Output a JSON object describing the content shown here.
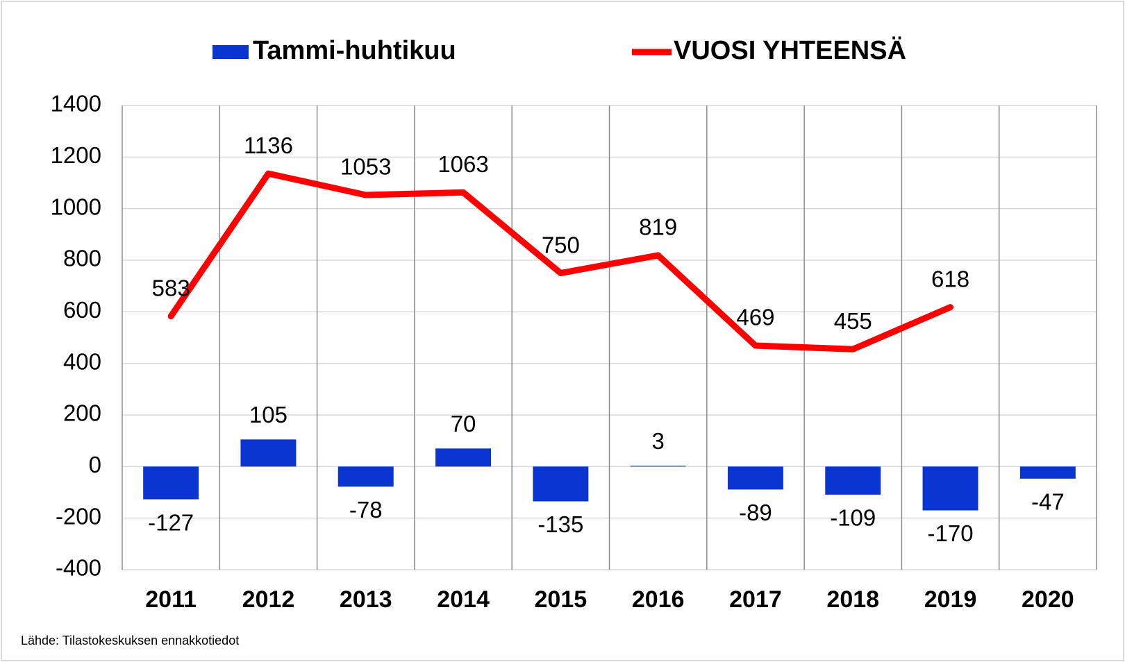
{
  "chart_data": {
    "type": "bar",
    "categories": [
      "2011",
      "2012",
      "2013",
      "2014",
      "2015",
      "2016",
      "2017",
      "2018",
      "2019",
      "2020"
    ],
    "series": [
      {
        "name": "Tammi-huhtikuu",
        "type": "bar",
        "color": "#0a35d0",
        "values": [
          -127,
          105,
          -78,
          70,
          -135,
          3,
          -89,
          -109,
          -170,
          -47
        ]
      },
      {
        "name": "VUOSI YHTEENSÄ",
        "type": "line",
        "color": "#ff0000",
        "values": [
          583,
          1136,
          1053,
          1063,
          750,
          819,
          469,
          455,
          618,
          null
        ]
      }
    ],
    "ylim": [
      -400,
      1400
    ],
    "yticks": [
      -400,
      -200,
      0,
      200,
      400,
      600,
      800,
      1000,
      1200,
      1400
    ],
    "grid": true,
    "legend": "top",
    "source": "Lähde: Tilastokeskuksen ennakkotiedot"
  }
}
